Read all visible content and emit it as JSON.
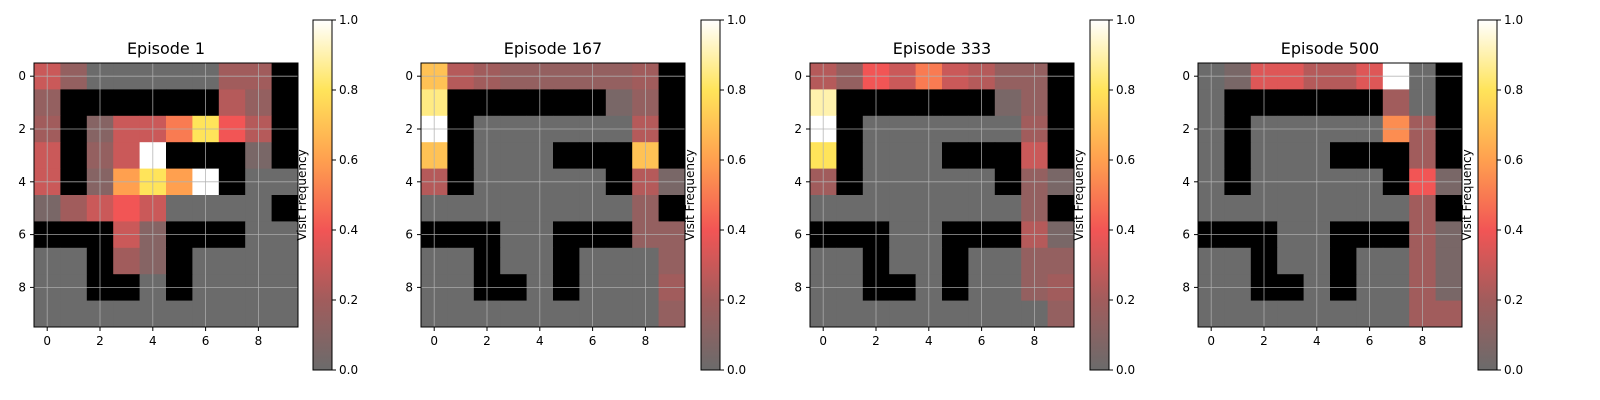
{
  "chart_data": [
    {
      "type": "heatmap",
      "title": "Episode 1",
      "grid_size": 10,
      "x_ticks": [
        "0",
        "2",
        "4",
        "6",
        "8"
      ],
      "y_ticks": [
        "0",
        "2",
        "4",
        "6",
        "8"
      ],
      "grid": true,
      "colormap": "hot-alpha",
      "colorbar": {
        "label": "Visit Frequency",
        "range": [
          0,
          1
        ],
        "ticks": [
          "0.0",
          "0.2",
          "0.4",
          "0.6",
          "0.8",
          "1.0"
        ]
      },
      "values": [
        [
          0.3,
          0.15,
          0.0,
          0.0,
          0.0,
          0.0,
          0.0,
          0.2,
          0.2,
          -1
        ],
        [
          0.15,
          -1,
          -1,
          -1,
          -1,
          -1,
          -1,
          0.25,
          0.15,
          -1
        ],
        [
          0.2,
          -1,
          0.1,
          0.3,
          0.3,
          0.5,
          0.8,
          0.4,
          0.25,
          -1
        ],
        [
          0.3,
          -1,
          0.15,
          0.3,
          1.0,
          -1,
          -1,
          -1,
          0.05,
          -1
        ],
        [
          0.3,
          -1,
          0.1,
          0.6,
          0.8,
          0.6,
          1.0,
          -1,
          0.0,
          0.0
        ],
        [
          0.05,
          0.2,
          0.3,
          0.4,
          0.3,
          0.0,
          0.0,
          0.0,
          0.0,
          -1
        ],
        [
          -1,
          -1,
          -1,
          0.3,
          0.1,
          -1,
          -1,
          -1,
          0.0,
          0.0
        ],
        [
          0.0,
          0.0,
          -1,
          0.2,
          0.1,
          -1,
          0.0,
          0.0,
          0.0,
          0.0
        ],
        [
          0.0,
          0.0,
          -1,
          -1,
          0.0,
          -1,
          0.0,
          0.0,
          0.0,
          0.0
        ],
        [
          0.0,
          0.0,
          0.0,
          0.0,
          0.0,
          0.0,
          0.0,
          0.0,
          0.0,
          0.0
        ]
      ]
    },
    {
      "type": "heatmap",
      "title": "Episode 167",
      "grid_size": 10,
      "x_ticks": [
        "0",
        "2",
        "4",
        "6",
        "8"
      ],
      "y_ticks": [
        "0",
        "2",
        "4",
        "6",
        "8"
      ],
      "grid": true,
      "colormap": "hot-alpha",
      "colorbar": {
        "label": "Visit Frequency",
        "range": [
          0,
          1
        ],
        "ticks": [
          "0.0",
          "0.2",
          "0.4",
          "0.6",
          "0.8",
          "1.0"
        ]
      },
      "values": [
        [
          0.7,
          0.25,
          0.2,
          0.15,
          0.15,
          0.15,
          0.15,
          0.15,
          0.2,
          -1
        ],
        [
          0.85,
          -1,
          -1,
          -1,
          -1,
          -1,
          -1,
          0.05,
          0.15,
          -1
        ],
        [
          1.0,
          -1,
          0.0,
          0.0,
          0.0,
          0.0,
          0.0,
          0.0,
          0.25,
          -1
        ],
        [
          0.7,
          -1,
          0.0,
          0.0,
          0.0,
          -1,
          -1,
          -1,
          0.7,
          -1
        ],
        [
          0.25,
          -1,
          0.0,
          0.0,
          0.0,
          0.0,
          0.0,
          -1,
          0.25,
          0.05
        ],
        [
          0.0,
          0.0,
          0.0,
          0.0,
          0.0,
          0.0,
          0.0,
          0.0,
          0.15,
          -1
        ],
        [
          -1,
          -1,
          -1,
          0.0,
          0.0,
          -1,
          -1,
          -1,
          0.15,
          0.15
        ],
        [
          0.0,
          0.0,
          -1,
          0.0,
          0.0,
          -1,
          0.0,
          0.0,
          0.0,
          0.15
        ],
        [
          0.0,
          0.0,
          -1,
          -1,
          0.0,
          -1,
          0.0,
          0.0,
          0.0,
          0.2
        ],
        [
          0.0,
          0.0,
          0.0,
          0.0,
          0.0,
          0.0,
          0.0,
          0.0,
          0.0,
          0.15
        ]
      ]
    },
    {
      "type": "heatmap",
      "title": "Episode 333",
      "grid_size": 10,
      "x_ticks": [
        "0",
        "2",
        "4",
        "6",
        "8"
      ],
      "y_ticks": [
        "0",
        "2",
        "4",
        "6",
        "8"
      ],
      "grid": true,
      "colormap": "hot-alpha",
      "colorbar": {
        "label": "Visit Frequency",
        "range": [
          0,
          1
        ],
        "ticks": [
          "0.0",
          "0.2",
          "0.4",
          "0.6",
          "0.8",
          "1.0"
        ]
      },
      "values": [
        [
          0.25,
          0.15,
          0.4,
          0.3,
          0.5,
          0.3,
          0.25,
          0.15,
          0.15,
          -1
        ],
        [
          0.9,
          -1,
          -1,
          -1,
          -1,
          -1,
          -1,
          0.05,
          0.15,
          -1
        ],
        [
          1.0,
          -1,
          0.0,
          0.0,
          0.0,
          0.0,
          0.0,
          0.0,
          0.2,
          -1
        ],
        [
          0.8,
          -1,
          0.0,
          0.0,
          0.0,
          -1,
          -1,
          -1,
          0.3,
          -1
        ],
        [
          0.2,
          -1,
          0.0,
          0.0,
          0.0,
          0.0,
          0.0,
          -1,
          0.15,
          0.05
        ],
        [
          0.0,
          0.0,
          0.0,
          0.0,
          0.0,
          0.0,
          0.0,
          0.0,
          0.15,
          -1
        ],
        [
          -1,
          -1,
          -1,
          0.0,
          0.0,
          -1,
          -1,
          -1,
          0.25,
          0.05
        ],
        [
          0.0,
          0.0,
          -1,
          0.0,
          0.0,
          -1,
          0.0,
          0.0,
          0.15,
          0.15
        ],
        [
          0.0,
          0.0,
          -1,
          -1,
          0.0,
          -1,
          0.0,
          0.0,
          0.15,
          0.2
        ],
        [
          0.0,
          0.0,
          0.0,
          0.0,
          0.0,
          0.0,
          0.0,
          0.0,
          0.0,
          0.15
        ]
      ]
    },
    {
      "type": "heatmap",
      "title": "Episode 500",
      "grid_size": 10,
      "x_ticks": [
        "0",
        "2",
        "4",
        "6",
        "8"
      ],
      "y_ticks": [
        "0",
        "2",
        "4",
        "6",
        "8"
      ],
      "grid": true,
      "colormap": "hot-alpha",
      "colorbar": {
        "label": "Visit Frequency",
        "range": [
          0,
          1
        ],
        "ticks": [
          "0.0",
          "0.2",
          "0.4",
          "0.6",
          "0.8",
          "1.0"
        ]
      },
      "values": [
        [
          0.0,
          0.05,
          0.35,
          0.35,
          0.25,
          0.25,
          0.35,
          1.0,
          0.0,
          -1
        ],
        [
          0.0,
          -1,
          -1,
          -1,
          -1,
          -1,
          -1,
          0.2,
          0.0,
          -1
        ],
        [
          0.0,
          -1,
          0.0,
          0.0,
          0.0,
          0.0,
          0.0,
          0.55,
          0.2,
          -1
        ],
        [
          0.0,
          -1,
          0.0,
          0.0,
          0.0,
          -1,
          -1,
          -1,
          0.2,
          -1
        ],
        [
          0.0,
          -1,
          0.0,
          0.0,
          0.0,
          0.0,
          0.0,
          -1,
          0.4,
          0.05
        ],
        [
          0.0,
          0.0,
          0.0,
          0.0,
          0.0,
          0.0,
          0.0,
          0.0,
          0.2,
          -1
        ],
        [
          -1,
          -1,
          -1,
          0.0,
          0.0,
          -1,
          -1,
          -1,
          0.2,
          0.05
        ],
        [
          0.0,
          0.0,
          -1,
          0.0,
          0.0,
          -1,
          0.0,
          0.0,
          0.2,
          0.05
        ],
        [
          0.0,
          0.0,
          -1,
          -1,
          0.0,
          -1,
          0.0,
          0.0,
          0.2,
          0.05
        ],
        [
          0.0,
          0.0,
          0.0,
          0.0,
          0.0,
          0.0,
          0.0,
          0.0,
          0.2,
          0.2
        ]
      ]
    }
  ]
}
